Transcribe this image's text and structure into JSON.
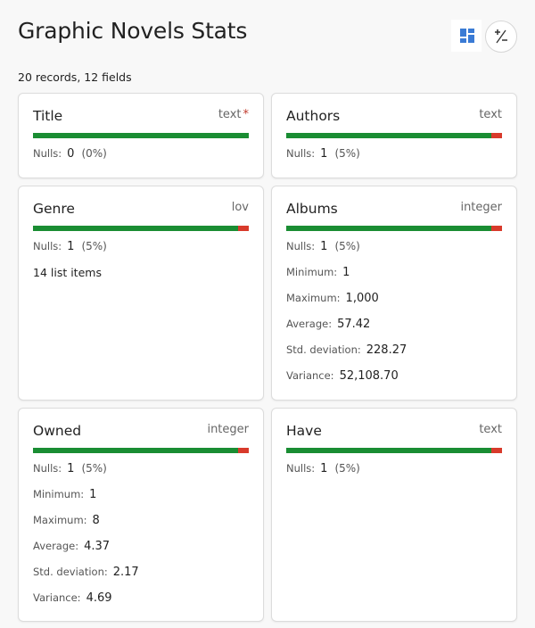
{
  "page": {
    "title": "Graphic Novels Stats",
    "summary": "20 records, 12 fields"
  },
  "toolbar": {
    "view_icon": "grid-layout-icon",
    "stats_icon": "plus-minus-icon"
  },
  "colors": {
    "filled": "#1a8d33",
    "null": "#d83a2b",
    "view_icon": "#3a7bd5"
  },
  "labels": {
    "nulls": "Nulls:",
    "minimum": "Minimum:",
    "maximum": "Maximum:",
    "average": "Average:",
    "std_deviation": "Std. deviation:",
    "variance": "Variance:"
  },
  "fields": [
    {
      "name": "Title",
      "type": "text",
      "required": true,
      "nulls": "0",
      "nulls_pct": "(0%)",
      "null_fraction": 0.0
    },
    {
      "name": "Authors",
      "type": "text",
      "required": false,
      "nulls": "1",
      "nulls_pct": "(5%)",
      "null_fraction": 0.05
    },
    {
      "name": "Genre",
      "type": "lov",
      "required": false,
      "nulls": "1",
      "nulls_pct": "(5%)",
      "null_fraction": 0.05,
      "list_items": "14 list items"
    },
    {
      "name": "Albums",
      "type": "integer",
      "required": false,
      "nulls": "1",
      "nulls_pct": "(5%)",
      "null_fraction": 0.05,
      "minimum": "1",
      "maximum": "1,000",
      "average": "57.42",
      "std_deviation": "228.27",
      "variance": "52,108.70"
    },
    {
      "name": "Owned",
      "type": "integer",
      "required": false,
      "nulls": "1",
      "nulls_pct": "(5%)",
      "null_fraction": 0.05,
      "minimum": "1",
      "maximum": "8",
      "average": "4.37",
      "std_deviation": "2.17",
      "variance": "4.69"
    },
    {
      "name": "Have",
      "type": "text",
      "required": false,
      "nulls": "1",
      "nulls_pct": "(5%)",
      "null_fraction": 0.05
    }
  ]
}
